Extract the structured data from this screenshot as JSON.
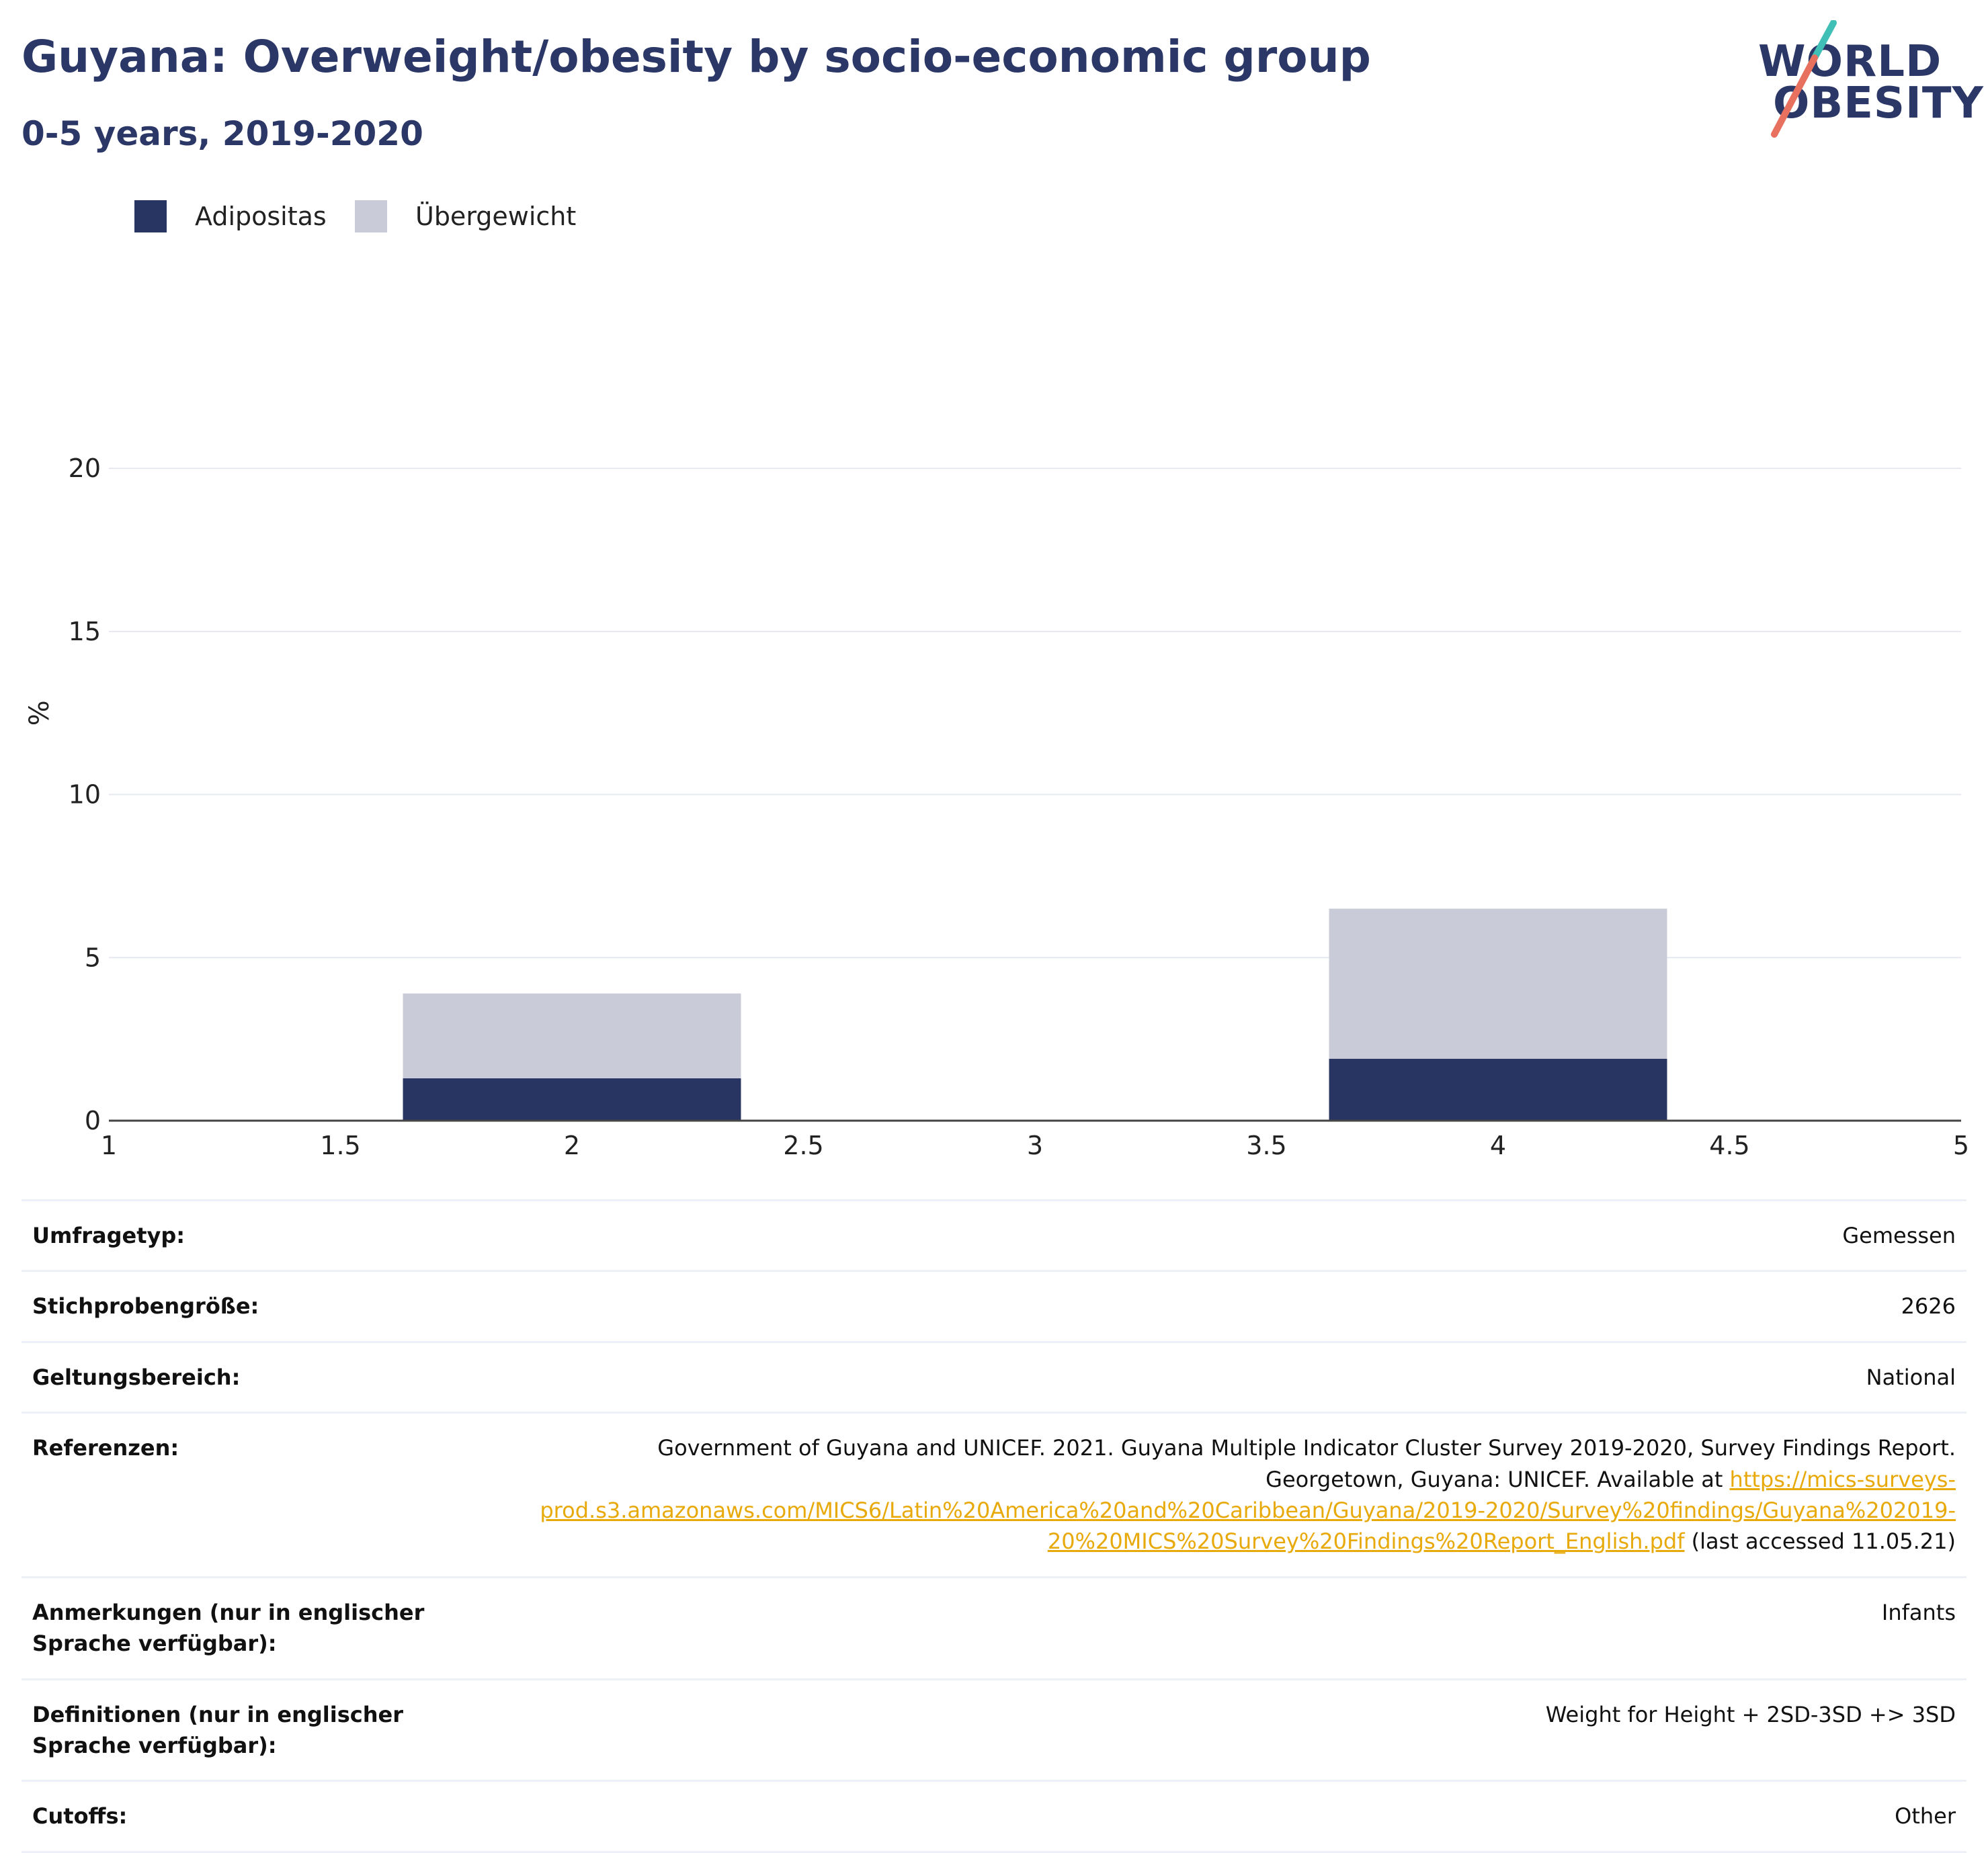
{
  "header": {
    "title": "Guyana: Overweight/obesity by socio-economic group",
    "subtitle": "0-5 years, 2019-2020"
  },
  "logo": {
    "line1": "WORLD",
    "line2": "OBESITY"
  },
  "colors": {
    "obesity": "#283462",
    "overweight": "#c9ccd8",
    "title": "#2b3766",
    "link": "#e8a90b",
    "logo_teal": "#3fbfb6",
    "logo_coral": "#e8705e"
  },
  "legend": [
    {
      "label": "Adipositas",
      "color": "#283462"
    },
    {
      "label": "Übergewicht",
      "color": "#c9ccd8"
    }
  ],
  "chart_data": {
    "type": "bar",
    "stacked": true,
    "x": [
      2,
      4
    ],
    "xlim": [
      1,
      5
    ],
    "xticks": [
      1,
      1.5,
      2,
      2.5,
      3,
      3.5,
      4,
      4.5,
      5
    ],
    "ylim": [
      0,
      22
    ],
    "yticks": [
      0,
      5,
      10,
      15,
      20
    ],
    "ylabel": "%",
    "xlabel": "",
    "grid": true,
    "legend_position": "top-left",
    "series": [
      {
        "name": "Adipositas",
        "values": [
          1.3,
          1.9
        ],
        "color": "#283462"
      },
      {
        "name": "Übergewicht",
        "values": [
          2.6,
          4.6
        ],
        "color": "#c9ccd8"
      }
    ]
  },
  "info": {
    "survey_type": {
      "label": "Umfragetyp:",
      "value": "Gemessen"
    },
    "sample_size": {
      "label": "Stichprobengröße:",
      "value": "2626"
    },
    "coverage": {
      "label": "Geltungsbereich:",
      "value": "National"
    },
    "references": {
      "label": "Referenzen:",
      "text": "Government of Guyana and UNICEF. 2021. Guyana Multiple Indicator Cluster Survey 2019-2020, Survey Findings Report. Georgetown, Guyana: UNICEF. Available at",
      "link": "https://mics-surveys-prod.s3.amazonaws.com/MICS6/Latin%20America%20and%20Caribbean/Guyana/2019-2020/Survey%20findings/Guyana%202019-20%20MICS%20Survey%20Findings%20Report_English.pdf",
      "suffix": "(last accessed 11.05.21)"
    },
    "notes": {
      "label": "Anmerkungen (nur in englischer Sprache verfügbar):",
      "value": "Infants"
    },
    "definitions": {
      "label": "Definitionen (nur in englischer Sprache verfügbar):",
      "value": "Weight for Height + 2SD-3SD +> 3SD"
    },
    "cutoffs": {
      "label": "Cutoffs:",
      "value": "Other"
    }
  }
}
